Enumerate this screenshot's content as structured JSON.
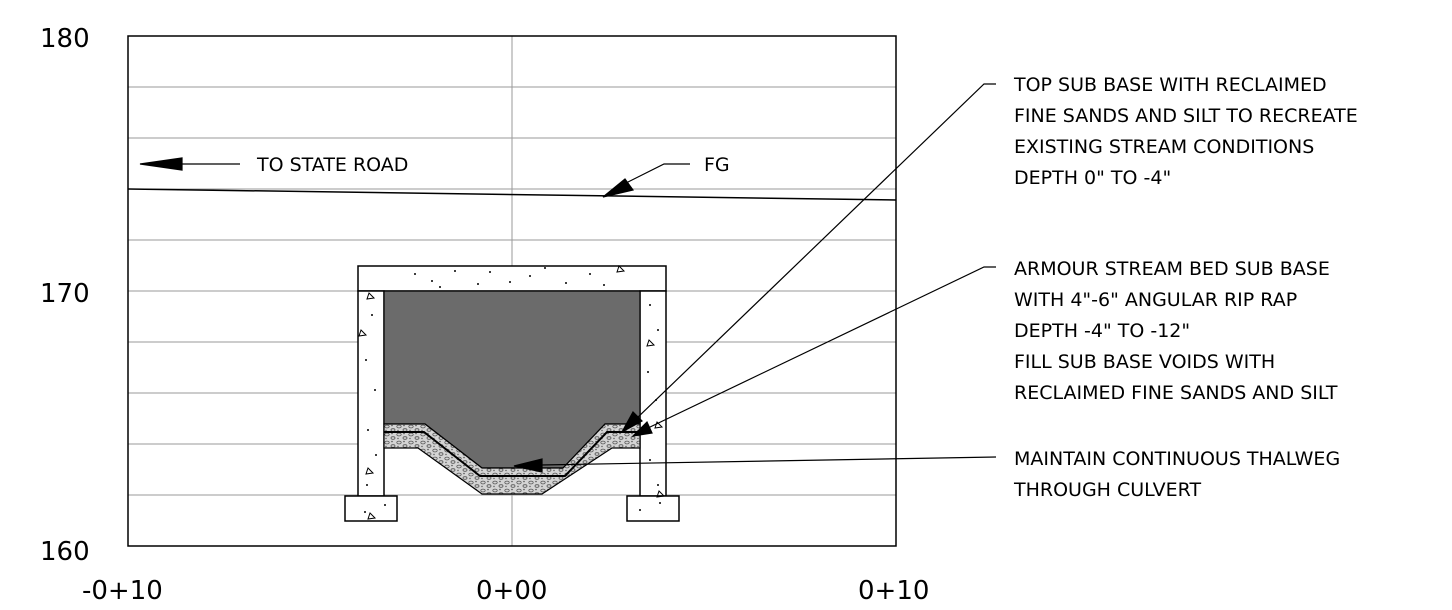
{
  "axes": {
    "y_ticks": [
      "180",
      "170",
      "160"
    ],
    "x_ticks": [
      "-0+10",
      "0+00",
      "0+10"
    ]
  },
  "annotations": {
    "to_state_road": "TO STATE ROAD",
    "fg": "FG",
    "top_sub_base": [
      "TOP SUB BASE WITH RECLAIMED",
      "FINE SANDS AND SILT TO RECREATE",
      "EXISTING STREAM CONDITIONS",
      "DEPTH 0\" TO -4\""
    ],
    "armour_sub_base": [
      "ARMOUR STREAM BED SUB BASE",
      "WITH 4\"-6\" ANGULAR RIP RAP",
      "DEPTH -4\" TO -12\"",
      "FILL SUB BASE VOIDS WITH",
      "RECLAIMED FINE SANDS AND SILT"
    ],
    "thalweg": [
      "MAINTAIN CONTINUOUS THALWEG",
      "THROUGH CULVERT"
    ]
  },
  "colors": {
    "channel_fill": "#6b6b6b",
    "grid": "#9a9a9a",
    "line": "#000000",
    "gravel": "#c8c8c8"
  }
}
